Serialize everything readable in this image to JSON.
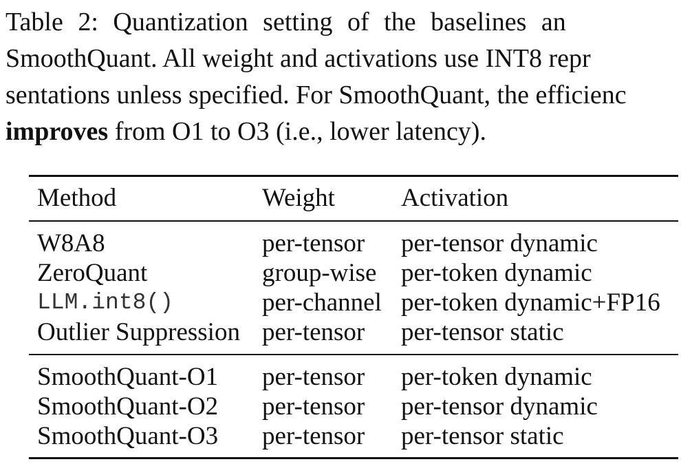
{
  "caption": {
    "line1": "Table 2:  Quantization setting of the baselines an",
    "line2": "SmoothQuant. All weight and activations use INT8 repr",
    "line3": "sentations unless specified. For SmoothQuant, the efficienc",
    "line4_bold": "improves",
    "line4_rest": " from O1 to O3 (i.e., lower latency)."
  },
  "table": {
    "headers": [
      "Method",
      "Weight",
      "Activation"
    ],
    "group1": [
      {
        "method": "W8A8",
        "weight": "per-tensor",
        "activation": "per-tensor dynamic"
      },
      {
        "method": "ZeroQuant",
        "weight": "group-wise",
        "activation": "per-token dynamic"
      },
      {
        "method": "LLM.int8()",
        "weight": "per-channel",
        "activation": "per-token dynamic+FP16"
      },
      {
        "method": "Outlier Suppression",
        "weight": "per-tensor",
        "activation": "per-tensor static"
      }
    ],
    "group2": [
      {
        "method": "SmoothQuant-O1",
        "weight": "per-tensor",
        "activation": "per-token dynamic"
      },
      {
        "method": "SmoothQuant-O2",
        "weight": "per-tensor",
        "activation": "per-tensor dynamic"
      },
      {
        "method": "SmoothQuant-O3",
        "weight": "per-tensor",
        "activation": "per-tensor static"
      }
    ]
  }
}
